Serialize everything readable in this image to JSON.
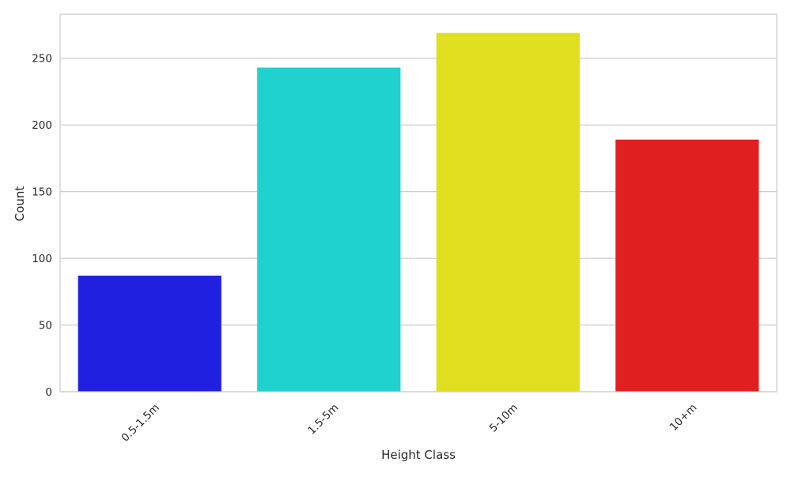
{
  "chart_data": {
    "type": "bar",
    "title": "",
    "xlabel": "Height Class",
    "ylabel": "Count",
    "categories": [
      "0.5-1.5m",
      "1.5-5m",
      "5-10m",
      "10+m"
    ],
    "values": [
      87,
      243,
      269,
      189
    ],
    "bar_colors": [
      "#2020e0",
      "#20d2cf",
      "#e0e020",
      "#e02020"
    ],
    "ylim": [
      0,
      283
    ],
    "yticks": [
      0,
      50,
      100,
      150,
      200,
      250
    ],
    "grid": true,
    "legend": "none"
  }
}
